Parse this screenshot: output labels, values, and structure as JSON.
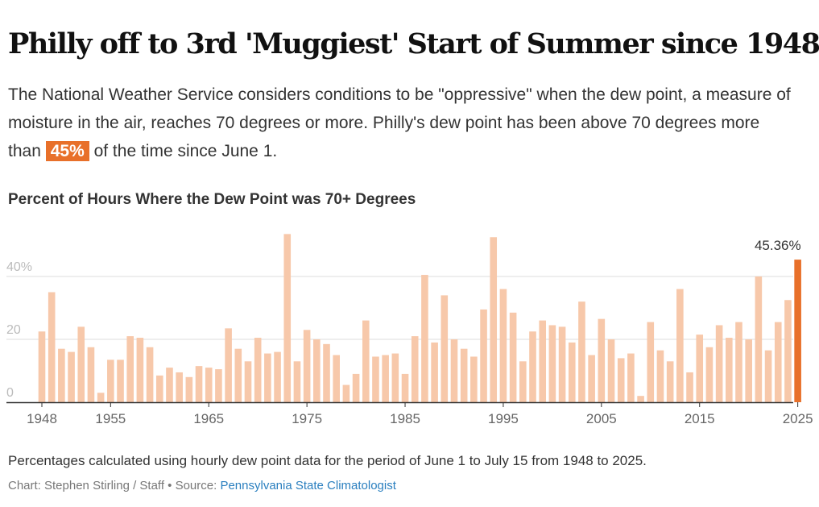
{
  "header": {
    "title": "Philly off to 3rd 'Muggiest' Start of Summer since 1948",
    "subtitle_before": "The National Weather Service considers conditions to be \"oppressive\" when the dew point, a measure of moisture in the air, reaches 70 degrees or more. Philly's dew point has been above 70 degrees more than ",
    "subtitle_highlight": "45%",
    "subtitle_after": " of the time since June 1."
  },
  "footer": {
    "note": "Percentages calculated using hourly dew point data for the period of June 1 to July 15 from 1948 to 2025.",
    "credit": "Chart: Stephen Stirling / Staff • Source: ",
    "source_link": "Pennsylvania State Climatologist"
  },
  "colors": {
    "bar": "#f7c8aa",
    "highlight": "#e8702a",
    "grid": "#dddddd",
    "axis": "#333333",
    "tick_label": "#666666",
    "y_label": "#bbbbbb"
  },
  "chart_data": {
    "type": "bar",
    "title": "Percent of Hours Where the Dew Point was 70+ Degrees",
    "xlabel": "",
    "ylabel": "",
    "x": [
      1948,
      1949,
      1950,
      1951,
      1952,
      1953,
      1954,
      1955,
      1956,
      1957,
      1958,
      1959,
      1960,
      1961,
      1962,
      1963,
      1964,
      1965,
      1966,
      1967,
      1968,
      1969,
      1970,
      1971,
      1972,
      1973,
      1974,
      1975,
      1976,
      1977,
      1978,
      1979,
      1980,
      1981,
      1982,
      1983,
      1984,
      1985,
      1986,
      1987,
      1988,
      1989,
      1990,
      1991,
      1992,
      1993,
      1994,
      1995,
      1996,
      1997,
      1998,
      1999,
      2000,
      2001,
      2002,
      2003,
      2004,
      2005,
      2006,
      2007,
      2008,
      2009,
      2010,
      2011,
      2012,
      2013,
      2014,
      2015,
      2016,
      2017,
      2018,
      2019,
      2020,
      2021,
      2022,
      2023,
      2024,
      2025
    ],
    "values": [
      22.5,
      35,
      17,
      16,
      24,
      17.5,
      3,
      13.5,
      13.5,
      21,
      20.5,
      17.5,
      8.5,
      11,
      9.5,
      8,
      11.5,
      11,
      10.5,
      23.5,
      17,
      13,
      20.5,
      15.5,
      16,
      53.5,
      13,
      23,
      20,
      18.5,
      15,
      5.5,
      9,
      26,
      14.5,
      15,
      15.5,
      9,
      21,
      40.5,
      19,
      34,
      20,
      17,
      14.5,
      29.5,
      52.5,
      36,
      28.5,
      13,
      22.5,
      26,
      24.5,
      24,
      19,
      32,
      15,
      26.5,
      20,
      14,
      15.5,
      2,
      25.5,
      16.5,
      13,
      36,
      9.5,
      21.5,
      17.5,
      24.5,
      20.5,
      25.5,
      20,
      40,
      16.5,
      25.5,
      32.5,
      45.36
    ],
    "ylim": [
      0,
      58
    ],
    "yticks": [
      0,
      20,
      40
    ],
    "ytick_labels": [
      "0",
      "20",
      "40%"
    ],
    "xticks": [
      1948,
      1955,
      1965,
      1975,
      1985,
      1995,
      2005,
      2015,
      2025
    ],
    "highlight_year": 2025,
    "annotation": "45.36%",
    "grid": true
  }
}
